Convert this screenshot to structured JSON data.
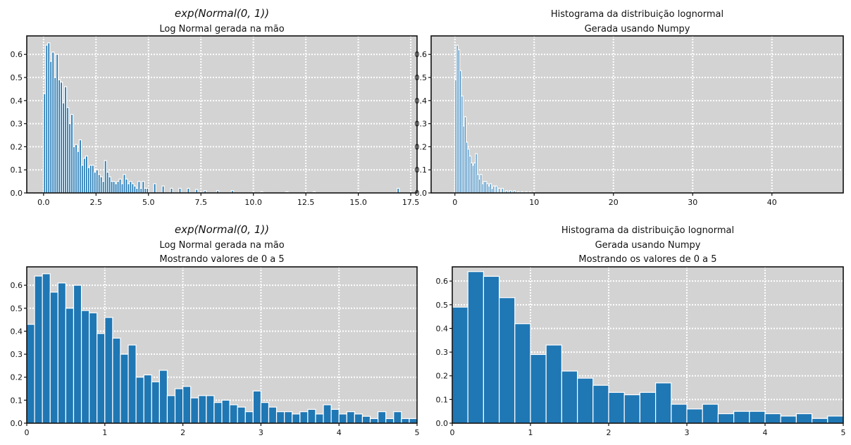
{
  "figure": {
    "background": "#ffffff",
    "axes_facecolor": "#d3d3d3",
    "bar_color": "#1f77b4",
    "bar_edge": "#ffffff",
    "grid_color": "#ffffff"
  },
  "chart_data": [
    {
      "type": "bar",
      "title_lines": [
        "exp(Normal(0, 1))",
        "Log Normal gerada na mão"
      ],
      "xlim": [
        -0.8,
        17.8
      ],
      "ylim": [
        0,
        0.68
      ],
      "xticks": [
        0,
        2.5,
        5,
        7.5,
        10,
        12.5,
        15,
        17.5
      ],
      "xtick_labels": [
        "0.0",
        "2.5",
        "5.0",
        "7.5",
        "10.0",
        "12.5",
        "15.0",
        "17.5"
      ],
      "yticks": [
        0,
        0.1,
        0.2,
        0.3,
        0.4,
        0.5,
        0.6
      ],
      "ytick_labels": [
        "0.0",
        "0.1",
        "0.2",
        "0.3",
        "0.4",
        "0.5",
        "0.6"
      ],
      "grid": true,
      "bar_width": 0.1,
      "x": [
        0.05,
        0.15,
        0.25,
        0.35,
        0.45,
        0.55,
        0.65,
        0.75,
        0.85,
        0.95,
        1.05,
        1.15,
        1.25,
        1.35,
        1.45,
        1.55,
        1.65,
        1.75,
        1.85,
        1.95,
        2.05,
        2.15,
        2.25,
        2.35,
        2.45,
        2.55,
        2.65,
        2.75,
        2.85,
        2.95,
        3.05,
        3.15,
        3.25,
        3.35,
        3.45,
        3.55,
        3.65,
        3.75,
        3.85,
        3.95,
        4.05,
        4.15,
        4.25,
        4.35,
        4.45,
        4.55,
        4.65,
        4.75,
        4.85,
        4.95,
        5.3,
        5.7,
        6.1,
        6.5,
        6.9,
        7.3,
        7.7,
        8.3,
        9.0,
        10.4,
        11.6,
        12.9,
        16.9
      ],
      "values": [
        0.43,
        0.64,
        0.65,
        0.57,
        0.61,
        0.5,
        0.6,
        0.49,
        0.48,
        0.39,
        0.46,
        0.37,
        0.3,
        0.34,
        0.2,
        0.21,
        0.18,
        0.23,
        0.12,
        0.15,
        0.16,
        0.11,
        0.12,
        0.12,
        0.09,
        0.1,
        0.08,
        0.07,
        0.05,
        0.14,
        0.09,
        0.07,
        0.05,
        0.05,
        0.04,
        0.05,
        0.06,
        0.04,
        0.08,
        0.06,
        0.04,
        0.05,
        0.04,
        0.03,
        0.02,
        0.05,
        0.02,
        0.05,
        0.02,
        0.02,
        0.04,
        0.03,
        0.02,
        0.02,
        0.02,
        0.015,
        0.01,
        0.01,
        0.01,
        0.005,
        0.005,
        0.005,
        0.02
      ]
    },
    {
      "type": "bar",
      "title_lines": [
        "Histograma da distribuição lognormal",
        "Gerada usando Numpy"
      ],
      "xlim": [
        -3,
        49
      ],
      "ylim": [
        0,
        0.68
      ],
      "xticks": [
        0,
        10,
        20,
        30,
        40
      ],
      "xtick_labels": [
        "0",
        "10",
        "20",
        "30",
        "40"
      ],
      "yticks": [
        0,
        0.1,
        0.2,
        0.3,
        0.4,
        0.5,
        0.6
      ],
      "ytick_labels": [
        "0.0",
        "0.1",
        "0.2",
        "0.3",
        "0.4",
        "0.5",
        "0.6"
      ],
      "grid": true,
      "bar_width": 0.2,
      "x": [
        0.1,
        0.3,
        0.5,
        0.7,
        0.9,
        1.1,
        1.3,
        1.5,
        1.7,
        1.9,
        2.1,
        2.3,
        2.5,
        2.7,
        2.9,
        3.1,
        3.3,
        3.5,
        3.7,
        3.9,
        4.1,
        4.3,
        4.5,
        4.7,
        4.9,
        5.2,
        5.6,
        6.0,
        6.5,
        7.0,
        7.5,
        8.0,
        8.5,
        9.0,
        9.5
      ],
      "values": [
        0.49,
        0.64,
        0.62,
        0.53,
        0.42,
        0.29,
        0.33,
        0.22,
        0.19,
        0.16,
        0.13,
        0.12,
        0.13,
        0.17,
        0.08,
        0.06,
        0.08,
        0.04,
        0.05,
        0.05,
        0.04,
        0.03,
        0.04,
        0.02,
        0.03,
        0.03,
        0.02,
        0.02,
        0.01,
        0.01,
        0.01,
        0.005,
        0.005,
        0.005,
        0.005
      ]
    },
    {
      "type": "bar",
      "title_lines": [
        "exp(Normal(0, 1))",
        "Log Normal gerada na mão",
        "Mostrando valores de 0 a 5"
      ],
      "xlim": [
        0,
        5
      ],
      "ylim": [
        0,
        0.68
      ],
      "xticks": [
        0,
        1,
        2,
        3,
        4,
        5
      ],
      "xtick_labels": [
        "0",
        "1",
        "2",
        "3",
        "4",
        "5"
      ],
      "yticks": [
        0,
        0.1,
        0.2,
        0.3,
        0.4,
        0.5,
        0.6
      ],
      "ytick_labels": [
        "0.0",
        "0.1",
        "0.2",
        "0.3",
        "0.4",
        "0.5",
        "0.6"
      ],
      "grid": true,
      "bar_width": 0.1,
      "x": [
        0.05,
        0.15,
        0.25,
        0.35,
        0.45,
        0.55,
        0.65,
        0.75,
        0.85,
        0.95,
        1.05,
        1.15,
        1.25,
        1.35,
        1.45,
        1.55,
        1.65,
        1.75,
        1.85,
        1.95,
        2.05,
        2.15,
        2.25,
        2.35,
        2.45,
        2.55,
        2.65,
        2.75,
        2.85,
        2.95,
        3.05,
        3.15,
        3.25,
        3.35,
        3.45,
        3.55,
        3.65,
        3.75,
        3.85,
        3.95,
        4.05,
        4.15,
        4.25,
        4.35,
        4.45,
        4.55,
        4.65,
        4.75,
        4.85,
        4.95
      ],
      "values": [
        0.43,
        0.64,
        0.65,
        0.57,
        0.61,
        0.5,
        0.6,
        0.49,
        0.48,
        0.39,
        0.46,
        0.37,
        0.3,
        0.34,
        0.2,
        0.21,
        0.18,
        0.23,
        0.12,
        0.15,
        0.16,
        0.11,
        0.12,
        0.12,
        0.09,
        0.1,
        0.08,
        0.07,
        0.05,
        0.14,
        0.09,
        0.07,
        0.05,
        0.05,
        0.04,
        0.05,
        0.06,
        0.04,
        0.08,
        0.06,
        0.04,
        0.05,
        0.04,
        0.03,
        0.02,
        0.05,
        0.02,
        0.05,
        0.02,
        0.02
      ]
    },
    {
      "type": "bar",
      "title_lines": [
        "Histograma da distribuição lognormal",
        "Gerada usando Numpy",
        "Mostrando os valores de 0 a 5"
      ],
      "xlim": [
        0,
        5
      ],
      "ylim": [
        0,
        0.66
      ],
      "xticks": [
        0,
        1,
        2,
        3,
        4,
        5
      ],
      "xtick_labels": [
        "0",
        "1",
        "2",
        "3",
        "4",
        "5"
      ],
      "yticks": [
        0,
        0.1,
        0.2,
        0.3,
        0.4,
        0.5,
        0.6
      ],
      "ytick_labels": [
        "0.0",
        "0.1",
        "0.2",
        "0.3",
        "0.4",
        "0.5",
        "0.6"
      ],
      "grid": true,
      "bar_width": 0.2,
      "x": [
        0.1,
        0.3,
        0.5,
        0.7,
        0.9,
        1.1,
        1.3,
        1.5,
        1.7,
        1.9,
        2.1,
        2.3,
        2.5,
        2.7,
        2.9,
        3.1,
        3.3,
        3.5,
        3.7,
        3.9,
        4.1,
        4.3,
        4.5,
        4.7,
        4.9
      ],
      "values": [
        0.49,
        0.64,
        0.62,
        0.53,
        0.42,
        0.29,
        0.33,
        0.22,
        0.19,
        0.16,
        0.13,
        0.12,
        0.13,
        0.17,
        0.08,
        0.06,
        0.08,
        0.04,
        0.05,
        0.05,
        0.04,
        0.03,
        0.04,
        0.02,
        0.03
      ]
    }
  ]
}
